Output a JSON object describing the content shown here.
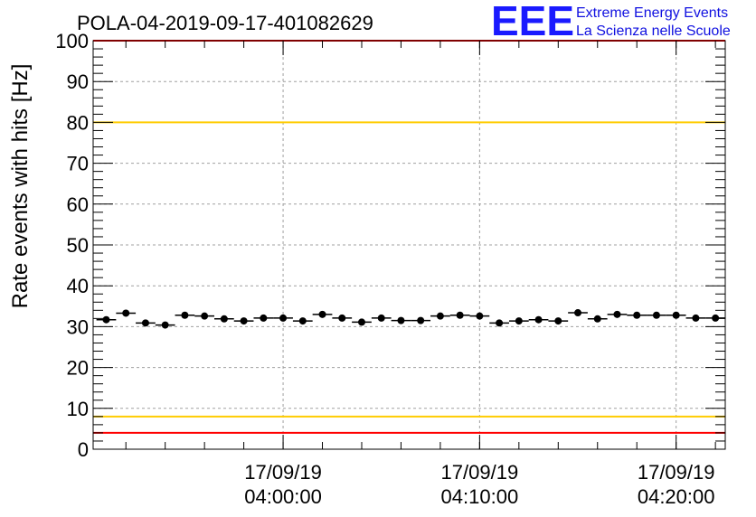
{
  "chart_data": {
    "type": "scatter",
    "title": "POLA-04-2019-09-17-401082629",
    "ylabel": "Rate events with hits [Hz]",
    "xlabel": "",
    "ylim": [
      0,
      100
    ],
    "yticks": [
      0,
      10,
      20,
      30,
      40,
      50,
      60,
      70,
      80,
      90,
      100
    ],
    "xticks": [
      {
        "x": "2019-09-17 04:00:00",
        "date": "17/09/19",
        "time": "04:00:00"
      },
      {
        "x": "2019-09-17 04:10:00",
        "date": "17/09/19",
        "time": "04:10:00"
      },
      {
        "x": "2019-09-17 04:20:00",
        "date": "17/09/19",
        "time": "04:20:00"
      }
    ],
    "xlim": [
      "2019-09-17 03:50:20",
      "2019-09-17 04:22:30"
    ],
    "grid": true,
    "reference_lines": [
      {
        "y": 100,
        "color": "#ff0000"
      },
      {
        "y": 80,
        "color": "#ffcc00"
      },
      {
        "y": 8,
        "color": "#ffcc00"
      },
      {
        "y": 4,
        "color": "#ff0000"
      }
    ],
    "series": [
      {
        "marker_color": "#000000",
        "x": [
          "2019-09-17 03:51:00",
          "2019-09-17 03:52:00",
          "2019-09-17 03:53:00",
          "2019-09-17 03:54:00",
          "2019-09-17 03:55:00",
          "2019-09-17 03:56:00",
          "2019-09-17 03:57:00",
          "2019-09-17 03:58:00",
          "2019-09-17 03:59:00",
          "2019-09-17 04:00:00",
          "2019-09-17 04:01:00",
          "2019-09-17 04:02:00",
          "2019-09-17 04:03:00",
          "2019-09-17 04:04:00",
          "2019-09-17 04:05:00",
          "2019-09-17 04:06:00",
          "2019-09-17 04:07:00",
          "2019-09-17 04:08:00",
          "2019-09-17 04:09:00",
          "2019-09-17 04:10:00",
          "2019-09-17 04:11:00",
          "2019-09-17 04:12:00",
          "2019-09-17 04:13:00",
          "2019-09-17 04:14:00",
          "2019-09-17 04:15:00",
          "2019-09-17 04:16:00",
          "2019-09-17 04:17:00",
          "2019-09-17 04:18:00",
          "2019-09-17 04:19:00",
          "2019-09-17 04:20:00",
          "2019-09-17 04:21:00",
          "2019-09-17 04:22:00"
        ],
        "y": [
          31.7,
          33.3,
          30.9,
          30.4,
          32.8,
          32.6,
          31.9,
          31.4,
          32.1,
          32.1,
          31.4,
          33.0,
          32.1,
          31.1,
          32.1,
          31.5,
          31.5,
          32.6,
          32.8,
          32.6,
          30.9,
          31.4,
          31.7,
          31.4,
          33.4,
          31.9,
          33.0,
          32.8,
          32.8,
          32.8,
          32.1,
          32.1
        ]
      }
    ]
  },
  "logo": {
    "mark": "EEE",
    "line1": "Extreme Energy Events",
    "line2": "La Scienza nelle Scuole"
  }
}
